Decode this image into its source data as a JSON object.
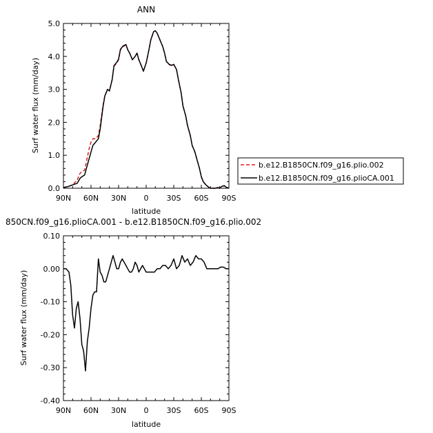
{
  "chart_data": [
    {
      "type": "line",
      "title": "ANN",
      "xlabel": "latitude",
      "ylabel": "Surf water flux (mm/day)",
      "xlim": [
        90,
        -90
      ],
      "ylim": [
        0,
        5
      ],
      "x_ticks": [
        90,
        60,
        30,
        0,
        -30,
        -60,
        -90
      ],
      "x_tick_labels": [
        "90N",
        "60N",
        "30N",
        "0",
        "30S",
        "60S",
        "90S"
      ],
      "y_ticks": [
        0,
        1,
        2,
        3,
        4,
        5
      ],
      "y_tick_labels": [
        "0.0",
        "1.0",
        "2.0",
        "3.0",
        "4.0",
        "5.0"
      ],
      "legend_position": "right",
      "series": [
        {
          "name": "b.e12.B1850CN.f09_g16.plio.002",
          "color": "#dd1c1c",
          "dash": "dashed",
          "x": [
            90,
            85,
            80,
            75,
            72,
            70,
            67,
            65,
            62,
            60,
            58,
            55,
            52,
            50,
            47,
            45,
            42,
            40,
            37,
            35,
            32,
            30,
            28,
            25,
            22,
            20,
            18,
            15,
            12,
            10,
            8,
            5,
            3,
            0,
            -3,
            -5,
            -8,
            -10,
            -12,
            -15,
            -18,
            -20,
            -22,
            -25,
            -28,
            -30,
            -33,
            -35,
            -38,
            -40,
            -43,
            -45,
            -48,
            -50,
            -53,
            -55,
            -58,
            -60,
            -62,
            -65,
            -68,
            -70,
            -73,
            -75,
            -78,
            -80,
            -82,
            -85,
            -87,
            -90
          ],
          "y": [
            0.02,
            0.05,
            0.1,
            0.25,
            0.45,
            0.5,
            0.55,
            0.8,
            1.2,
            1.4,
            1.5,
            1.5,
            1.6,
            1.9,
            2.5,
            2.8,
            3.0,
            2.95,
            3.3,
            3.7,
            3.8,
            3.9,
            4.2,
            4.3,
            4.35,
            4.2,
            4.1,
            3.9,
            4.0,
            4.1,
            3.9,
            3.7,
            3.55,
            3.8,
            4.2,
            4.5,
            4.75,
            4.78,
            4.7,
            4.5,
            4.3,
            4.1,
            3.85,
            3.75,
            3.72,
            3.75,
            3.6,
            3.3,
            2.9,
            2.5,
            2.2,
            1.9,
            1.6,
            1.3,
            1.1,
            0.9,
            0.6,
            0.35,
            0.2,
            0.1,
            0.03,
            0.0,
            0.0,
            0.0,
            0.02,
            0.0,
            0.05,
            0.08,
            0.03,
            0.0
          ]
        },
        {
          "name": "b.e12.B1850CN.f09_g16.plioCA.001",
          "color": "#000000",
          "dash": "solid",
          "x": [
            90,
            85,
            80,
            75,
            72,
            70,
            67,
            65,
            62,
            60,
            58,
            55,
            52,
            50,
            47,
            45,
            42,
            40,
            37,
            35,
            32,
            30,
            28,
            25,
            22,
            20,
            18,
            15,
            12,
            10,
            8,
            5,
            3,
            0,
            -3,
            -5,
            -8,
            -10,
            -12,
            -15,
            -18,
            -20,
            -22,
            -25,
            -28,
            -30,
            -33,
            -35,
            -38,
            -40,
            -43,
            -45,
            -48,
            -50,
            -53,
            -55,
            -58,
            -60,
            -62,
            -65,
            -68,
            -70,
            -73,
            -75,
            -78,
            -80,
            -82,
            -85,
            -87,
            -90
          ],
          "y": [
            0.02,
            0.05,
            0.1,
            0.15,
            0.3,
            0.35,
            0.4,
            0.6,
            0.9,
            1.1,
            1.3,
            1.4,
            1.5,
            1.8,
            2.45,
            2.8,
            3.0,
            2.95,
            3.3,
            3.72,
            3.82,
            3.92,
            4.22,
            4.32,
            4.36,
            4.2,
            4.1,
            3.9,
            4.0,
            4.1,
            3.9,
            3.7,
            3.55,
            3.8,
            4.2,
            4.5,
            4.75,
            4.78,
            4.7,
            4.5,
            4.3,
            4.1,
            3.85,
            3.76,
            3.73,
            3.76,
            3.6,
            3.3,
            2.9,
            2.5,
            2.2,
            1.9,
            1.6,
            1.3,
            1.1,
            0.9,
            0.6,
            0.35,
            0.2,
            0.1,
            0.03,
            0.0,
            0.0,
            0.0,
            0.02,
            0.0,
            0.05,
            0.08,
            0.03,
            0.0
          ]
        }
      ]
    },
    {
      "type": "line",
      "title": "850CN.f09_g16.plioCA.001 - b.e12.B1850CN.f09_g16.plio.002",
      "xlabel": "latitude",
      "ylabel": "Surf water flux (mm/day)",
      "xlim": [
        90,
        -90
      ],
      "ylim": [
        -0.4,
        0.1
      ],
      "x_ticks": [
        90,
        60,
        30,
        0,
        -30,
        -60,
        -90
      ],
      "x_tick_labels": [
        "90N",
        "60N",
        "30N",
        "0",
        "30S",
        "60S",
        "90S"
      ],
      "y_ticks": [
        -0.4,
        -0.3,
        -0.2,
        -0.1,
        0.0,
        0.1
      ],
      "y_tick_labels": [
        "-0.40",
        "-0.30",
        "-0.20",
        "-0.10",
        "0.00",
        "0.10"
      ],
      "series": [
        {
          "color": "#000000",
          "dash": "solid",
          "x": [
            90,
            87,
            84,
            82,
            80,
            78,
            76,
            74,
            72,
            70,
            68,
            66,
            64,
            62,
            60,
            58,
            56,
            54,
            52,
            50,
            48,
            46,
            44,
            42,
            40,
            38,
            36,
            34,
            32,
            30,
            28,
            26,
            24,
            22,
            20,
            18,
            16,
            14,
            12,
            10,
            8,
            6,
            4,
            2,
            0,
            -3,
            -6,
            -9,
            -12,
            -15,
            -18,
            -21,
            -24,
            -27,
            -30,
            -33,
            -36,
            -39,
            -42,
            -45,
            -48,
            -51,
            -54,
            -57,
            -60,
            -63,
            -66,
            -69,
            -72,
            -75,
            -78,
            -81,
            -84,
            -87,
            -90
          ],
          "y": [
            0.0,
            0.0,
            -0.01,
            -0.05,
            -0.14,
            -0.18,
            -0.12,
            -0.1,
            -0.15,
            -0.23,
            -0.25,
            -0.31,
            -0.22,
            -0.18,
            -0.12,
            -0.08,
            -0.07,
            -0.07,
            0.03,
            -0.01,
            -0.02,
            -0.04,
            -0.04,
            -0.02,
            0.0,
            0.02,
            0.04,
            0.02,
            0.0,
            0.0,
            0.02,
            0.03,
            0.02,
            0.01,
            0.0,
            -0.01,
            -0.01,
            0.0,
            0.02,
            0.01,
            -0.01,
            0.0,
            0.01,
            0.0,
            -0.01,
            -0.01,
            -0.01,
            -0.01,
            0.0,
            0.0,
            0.01,
            0.01,
            0.0,
            0.01,
            0.03,
            0.0,
            0.01,
            0.04,
            0.02,
            0.03,
            0.01,
            0.02,
            0.04,
            0.03,
            0.03,
            0.02,
            0.0,
            0.0,
            0.0,
            0.0,
            0.0,
            0.005,
            0.005,
            0.0,
            0.0
          ]
        }
      ]
    }
  ]
}
